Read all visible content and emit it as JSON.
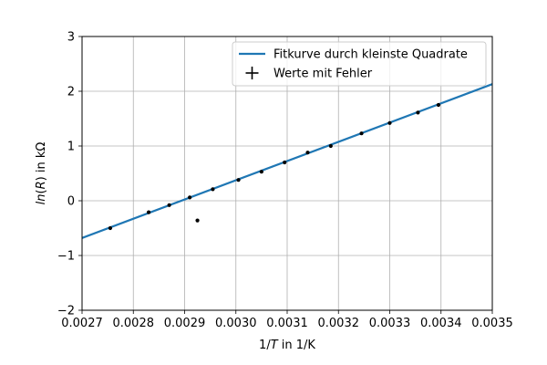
{
  "chart_data": {
    "type": "line",
    "xlabel_parts": [
      "1/",
      "T",
      " in 1/K"
    ],
    "ylabel_parts": [
      "ln",
      "(",
      "R",
      ") in kΩ"
    ],
    "xlim": [
      0.0027,
      0.0035
    ],
    "ylim": [
      -2,
      3
    ],
    "x_ticks": [
      0.0027,
      0.0028,
      0.0029,
      0.003,
      0.0031,
      0.0032,
      0.0033,
      0.0034,
      0.0035
    ],
    "x_tick_labels": [
      "0.0027",
      "0.0028",
      "0.0029",
      "0.0030",
      "0.0031",
      "0.0032",
      "0.0033",
      "0.0034",
      "0.0035"
    ],
    "y_ticks": [
      -2,
      -1,
      0,
      1,
      2,
      3
    ],
    "y_tick_labels": [
      "−2",
      "−1",
      "0",
      "1",
      "2",
      "3"
    ],
    "grid": true,
    "legend_position": "top-right",
    "series": [
      {
        "name": "Fitkurve durch kleinste Quadrate",
        "kind": "line",
        "color": "#1f77b4",
        "x": [
          0.0027,
          0.0035
        ],
        "y": [
          -0.68,
          2.13
        ]
      },
      {
        "name": "Werte mit Fehler",
        "kind": "errorbar-points",
        "color": "#000000",
        "x": [
          0.002755,
          0.002925,
          0.00283,
          0.00287,
          0.00291,
          0.002955,
          0.003005,
          0.00305,
          0.003095,
          0.00314,
          0.003185,
          0.003245,
          0.0033,
          0.003355,
          0.003395
        ],
        "y": [
          -0.5,
          -0.36,
          -0.21,
          -0.08,
          0.06,
          0.21,
          0.38,
          0.53,
          0.7,
          0.88,
          1.0,
          1.23,
          1.42,
          1.61,
          1.75
        ]
      }
    ]
  }
}
